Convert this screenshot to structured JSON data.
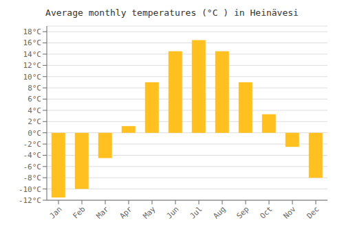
{
  "chart_data": {
    "type": "bar",
    "title": "Average monthly temperatures (°C ) in Heinävesi",
    "categories": [
      "Jan",
      "Feb",
      "Mar",
      "Apr",
      "May",
      "Jun",
      "Jul",
      "Aug",
      "Sep",
      "Oct",
      "Nov",
      "Dec"
    ],
    "values": [
      -11.5,
      -10.0,
      -4.5,
      1.2,
      9.0,
      14.5,
      16.5,
      14.5,
      9.0,
      3.3,
      -2.5,
      -8.0
    ],
    "color": "#FFC020",
    "ylim": [
      -12,
      19
    ],
    "yticks": [
      {
        "value": -12,
        "label": "-12°C"
      },
      {
        "value": -10,
        "label": "-10°C"
      },
      {
        "value": -8,
        "label": "-8°C"
      },
      {
        "value": -6,
        "label": "-6°C"
      },
      {
        "value": -4,
        "label": "-4°C"
      },
      {
        "value": -2,
        "label": "-2°C"
      },
      {
        "value": 0,
        "label": "0°C"
      },
      {
        "value": 2,
        "label": "2°C"
      },
      {
        "value": 4,
        "label": "4°C"
      },
      {
        "value": 6,
        "label": "6°C"
      },
      {
        "value": 8,
        "label": "8°C"
      },
      {
        "value": 10,
        "label": "10°C"
      },
      {
        "value": 12,
        "label": "12°C"
      },
      {
        "value": 14,
        "label": "14°C"
      },
      {
        "value": 16,
        "label": "16°C"
      },
      {
        "value": 18,
        "label": "18°C"
      }
    ],
    "grid": true
  }
}
